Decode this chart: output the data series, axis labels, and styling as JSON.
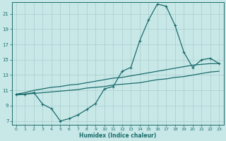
{
  "xlabel": "Humidex (Indice chaleur)",
  "xlim": [
    -0.5,
    23.5
  ],
  "ylim": [
    6.5,
    22.5
  ],
  "xticks": [
    0,
    1,
    2,
    3,
    4,
    5,
    6,
    7,
    8,
    9,
    10,
    11,
    12,
    13,
    14,
    15,
    16,
    17,
    18,
    19,
    20,
    21,
    22,
    23
  ],
  "yticks": [
    7,
    9,
    11,
    13,
    15,
    17,
    19,
    21
  ],
  "bg_color": "#c8e8e8",
  "grid_color": "#aacccc",
  "line_color": "#1a6b6b",
  "line1_x": [
    0,
    1,
    2,
    3,
    4,
    5,
    6,
    7,
    8,
    9,
    10,
    11,
    12,
    13,
    14,
    15,
    16,
    17,
    18,
    19,
    20,
    21,
    22,
    23
  ],
  "line1_y": [
    10.5,
    10.5,
    10.7,
    9.2,
    8.6,
    7.0,
    7.3,
    7.8,
    8.5,
    9.3,
    11.2,
    11.5,
    13.5,
    14.0,
    17.5,
    20.2,
    22.3,
    22.0,
    19.5,
    16.0,
    14.0,
    15.0,
    15.2,
    14.5
  ],
  "line2_x": [
    0,
    1,
    2,
    3,
    4,
    5,
    6,
    7,
    8,
    9,
    10,
    11,
    12,
    13,
    14,
    15,
    16,
    17,
    18,
    19,
    20,
    21,
    22,
    23
  ],
  "line2_y": [
    10.5,
    10.7,
    11.0,
    11.2,
    11.4,
    11.5,
    11.7,
    11.8,
    12.0,
    12.2,
    12.4,
    12.6,
    12.7,
    12.9,
    13.1,
    13.3,
    13.5,
    13.7,
    13.9,
    14.1,
    14.3,
    14.4,
    14.5,
    14.5
  ],
  "line3_x": [
    0,
    1,
    2,
    3,
    4,
    5,
    6,
    7,
    8,
    9,
    10,
    11,
    12,
    13,
    14,
    15,
    16,
    17,
    18,
    19,
    20,
    21,
    22,
    23
  ],
  "line3_y": [
    10.4,
    10.5,
    10.6,
    10.7,
    10.8,
    10.9,
    11.0,
    11.1,
    11.3,
    11.4,
    11.5,
    11.7,
    11.8,
    11.9,
    12.0,
    12.2,
    12.4,
    12.5,
    12.7,
    12.8,
    13.0,
    13.2,
    13.4,
    13.5
  ]
}
